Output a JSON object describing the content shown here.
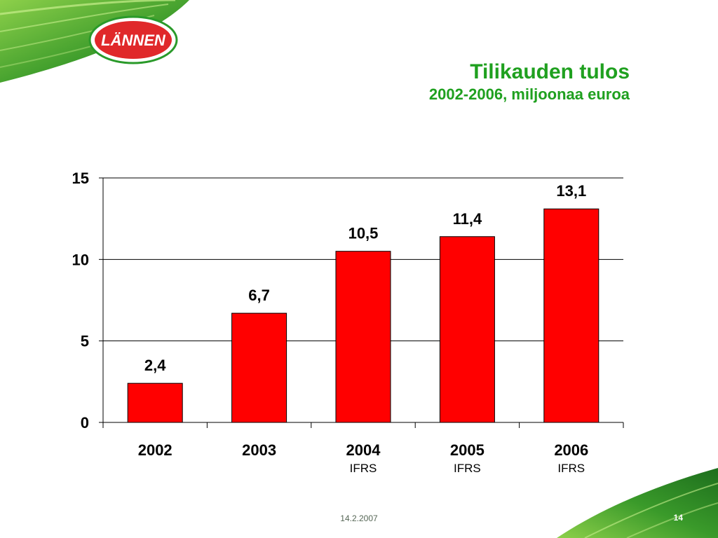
{
  "brand": {
    "logo_text": "LÄNNEN",
    "green": "#1fa01f",
    "red": "#e0282a"
  },
  "header": {
    "title": "Tilikauden tulos",
    "subtitle": "2002-2006, miljoonaa euroa"
  },
  "chart_data": {
    "type": "bar",
    "categories": [
      "2002",
      "2003",
      "2004",
      "2005",
      "2006"
    ],
    "category_notes": [
      "",
      "",
      "IFRS",
      "IFRS",
      "IFRS"
    ],
    "values": [
      2.4,
      6.7,
      10.5,
      11.4,
      13.1
    ],
    "data_labels": [
      "2,4",
      "6,7",
      "10,5",
      "11,4",
      "13,1"
    ],
    "yticks": [
      0,
      5,
      10,
      15
    ],
    "ylim": [
      0,
      15
    ],
    "grid": true,
    "bar_color": "#ff0000",
    "title": "",
    "xlabel": "",
    "ylabel": ""
  },
  "footer": {
    "date": "14.2.2007",
    "page": "14"
  }
}
